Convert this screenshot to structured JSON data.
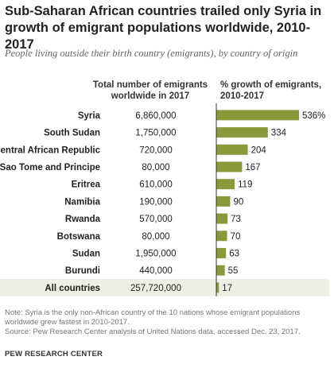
{
  "title": "Sub-Saharan  African countries trailed only Syria in growth of emigrant populations worldwide, 2010-2017",
  "subtitle": "People living outside their birth country (emigrants), by country of origin",
  "column_headers": {
    "total": "Total number of emigrants worldwide in 2017",
    "growth": "% growth of emigrants, 2010-2017"
  },
  "footer": {
    "note": "Note: Syria is the only non-African country of the 10 nations whose emigrant populations worldwide grew fastest in 2010-2017.",
    "source": "Source: Pew Research Center analysis of United Nations data, accessed Dec. 23, 2017.",
    "brand": "PEW RESEARCH CENTER"
  },
  "colors": {
    "bar": "#8a9a3b",
    "highlight_row": "#efeee4",
    "axis": "#333333"
  },
  "chart_data": {
    "type": "bar",
    "orientation": "horizontal",
    "categories": [
      "Syria",
      "South Sudan",
      "Central African Republic",
      "Sao Tome and Principe",
      "Eritrea",
      "Namibia",
      "Rwanda",
      "Botswana",
      "Sudan",
      "Burundi",
      "All countries"
    ],
    "totals": [
      "6,860,000",
      "1,750,000",
      "720,000",
      "80,000",
      "610,000",
      "190,000",
      "570,000",
      "80,000",
      "1,950,000",
      "440,000",
      "257,720,000"
    ],
    "values": [
      536,
      334,
      204,
      167,
      119,
      90,
      73,
      70,
      63,
      55,
      17
    ],
    "value_labels": [
      "536%",
      "334",
      "204",
      "167",
      "119",
      "90",
      "73",
      "70",
      "63",
      "55",
      "17"
    ],
    "highlighted_category": "All countries",
    "xlim": [
      0,
      536
    ]
  }
}
